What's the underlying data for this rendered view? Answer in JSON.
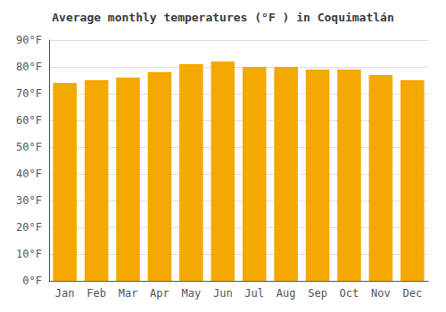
{
  "chart_data": {
    "type": "bar",
    "title": "Average monthly temperatures (°F ) in Coquimatlán",
    "categories": [
      "Jan",
      "Feb",
      "Mar",
      "Apr",
      "May",
      "Jun",
      "Jul",
      "Aug",
      "Sep",
      "Oct",
      "Nov",
      "Dec"
    ],
    "values": [
      74,
      75,
      76,
      78,
      81,
      82,
      80,
      80,
      79,
      79,
      77,
      75
    ],
    "color": "#F5A800",
    "ylim": [
      0,
      90
    ],
    "yticks": [
      {
        "value": 0,
        "label": "0°F"
      },
      {
        "value": 10,
        "label": "10°F"
      },
      {
        "value": 20,
        "label": "20°F"
      },
      {
        "value": 30,
        "label": "30°F"
      },
      {
        "value": 40,
        "label": "40°F"
      },
      {
        "value": 50,
        "label": "50°F"
      },
      {
        "value": 60,
        "label": "60°F"
      },
      {
        "value": 70,
        "label": "70°F"
      },
      {
        "value": 80,
        "label": "80°F"
      },
      {
        "value": 90,
        "label": "90°F"
      }
    ],
    "grid": true
  }
}
